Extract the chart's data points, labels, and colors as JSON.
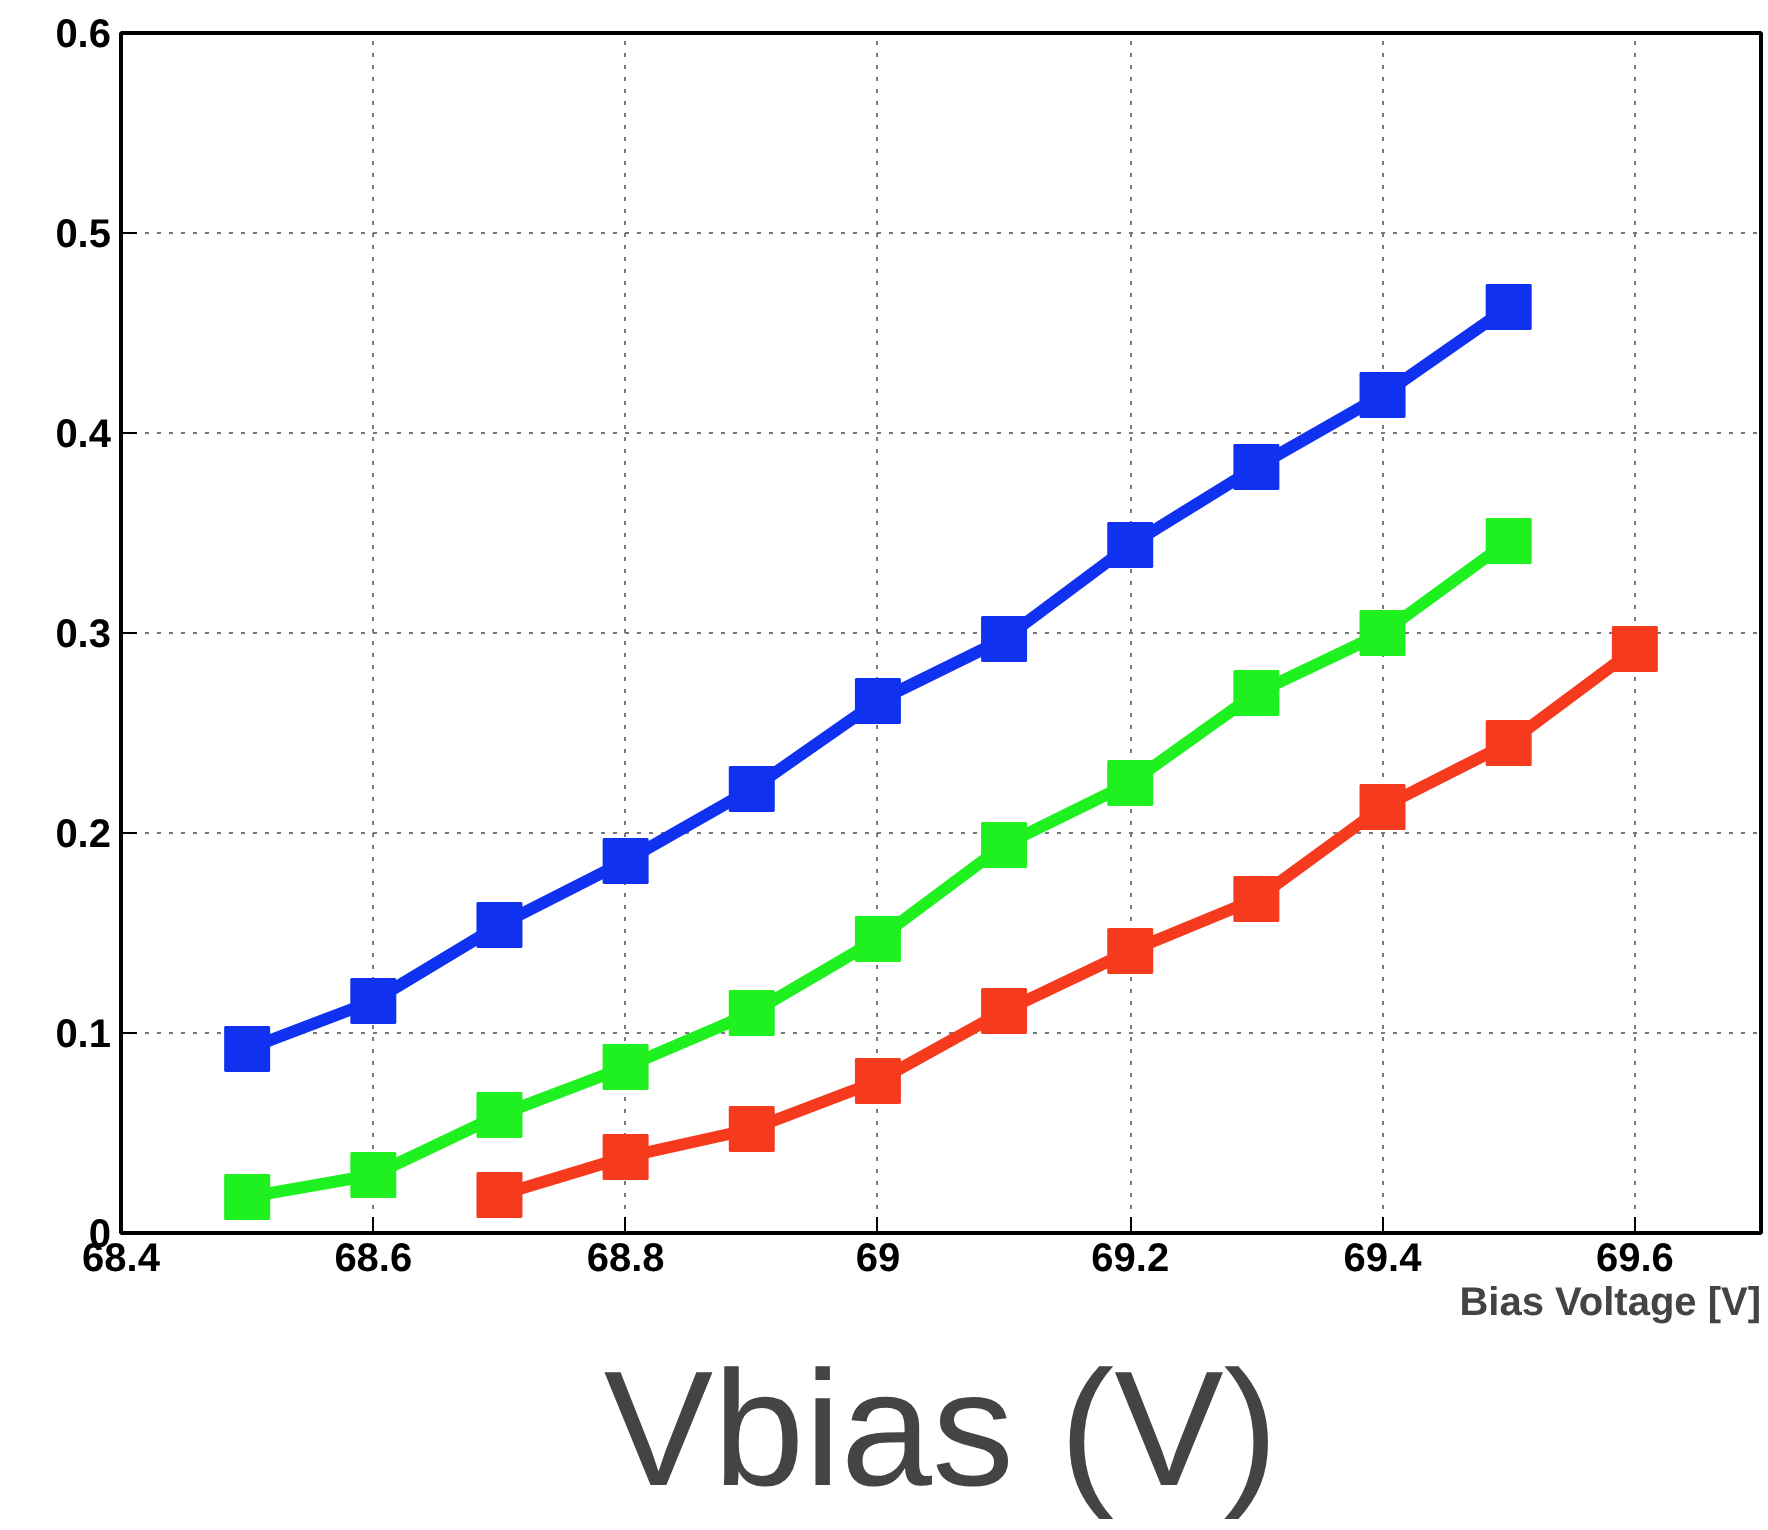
{
  "chart_data": {
    "type": "line",
    "xlabel": "Bias Voltage [V]",
    "annotations": [
      "Vbias (V)"
    ],
    "xlim": [
      68.4,
      69.7
    ],
    "ylim": [
      0,
      0.6
    ],
    "xticks": [
      68.4,
      68.6,
      68.8,
      69,
      69.2,
      69.4,
      69.6
    ],
    "yticks": [
      0,
      0.1,
      0.2,
      0.3,
      0.4,
      0.5,
      0.6
    ],
    "grid": true,
    "marker": "square",
    "line_style": "solid",
    "series": [
      {
        "color": "#1032f0",
        "x": [
          68.5,
          68.6,
          68.7,
          68.8,
          68.9,
          69.0,
          69.1,
          69.2,
          69.3,
          69.4,
          69.5
        ],
        "values": [
          0.092,
          0.116,
          0.154,
          0.186,
          0.222,
          0.266,
          0.297,
          0.344,
          0.383,
          0.419,
          0.463
        ]
      },
      {
        "color": "#1ff01f",
        "x": [
          68.5,
          68.6,
          68.7,
          68.8,
          68.9,
          69.0,
          69.1,
          69.2,
          69.3,
          69.4,
          69.5
        ],
        "values": [
          0.018,
          0.029,
          0.059,
          0.083,
          0.11,
          0.147,
          0.194,
          0.225,
          0.27,
          0.3,
          0.346
        ]
      },
      {
        "color": "#f53a1e",
        "x": [
          68.7,
          68.8,
          68.9,
          69.0,
          69.1,
          69.2,
          69.3,
          69.4,
          69.5,
          69.6
        ],
        "values": [
          0.019,
          0.038,
          0.052,
          0.076,
          0.111,
          0.141,
          0.167,
          0.213,
          0.245,
          0.292
        ]
      }
    ]
  }
}
